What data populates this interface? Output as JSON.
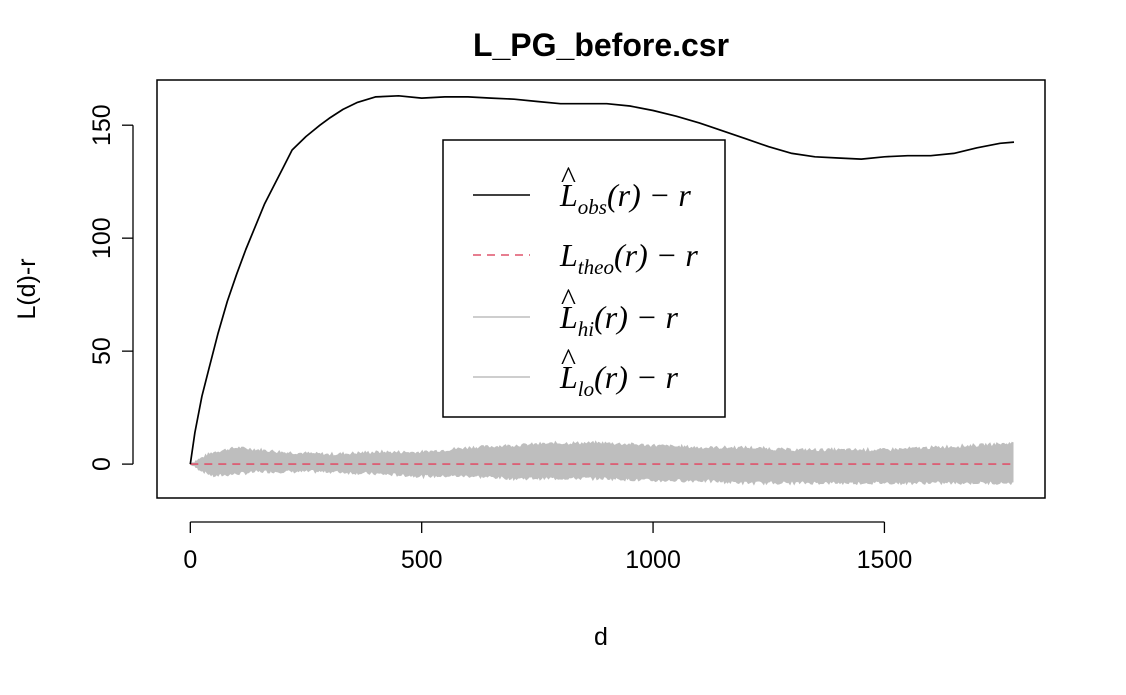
{
  "chart_data": {
    "type": "line",
    "title": "L_PG_before.csr",
    "xlabel": "d",
    "ylabel": "L(d)-r",
    "xlim": [
      -72,
      1847
    ],
    "ylim": [
      -15,
      170
    ],
    "x_ticks": [
      0,
      500,
      1000,
      1500
    ],
    "y_ticks": [
      0,
      50,
      100,
      150
    ],
    "x_tick_labels": [
      "0",
      "500",
      "1000",
      "1500"
    ],
    "y_tick_labels": [
      "0",
      "50",
      "100",
      "150"
    ],
    "grid": false,
    "legend_position": "top-center",
    "series": [
      {
        "name": "obs",
        "color": "#000000",
        "style": "solid",
        "x": [
          0,
          10,
          25,
          40,
          60,
          80,
          100,
          120,
          140,
          160,
          180,
          200,
          220,
          250,
          280,
          300,
          330,
          360,
          400,
          450,
          500,
          550,
          600,
          650,
          700,
          750,
          800,
          850,
          900,
          950,
          1000,
          1050,
          1100,
          1150,
          1200,
          1250,
          1300,
          1350,
          1400,
          1450,
          1500,
          1550,
          1600,
          1650,
          1700,
          1750,
          1780
        ],
        "y": [
          0,
          14,
          30,
          42,
          58,
          72,
          84,
          95,
          105,
          115,
          123,
          131,
          139,
          145,
          150,
          153,
          157,
          160,
          162.5,
          163,
          162,
          162.5,
          162.5,
          162,
          161.5,
          160.5,
          159.5,
          159.5,
          159.5,
          158.5,
          156.5,
          154,
          151,
          147.5,
          144,
          140.5,
          137.5,
          136,
          135.5,
          135,
          136,
          136.5,
          136.5,
          137.5,
          140,
          142,
          142.5
        ]
      },
      {
        "name": "theo",
        "color": "#DF536B",
        "style": "dashed",
        "x": [
          0,
          1780
        ],
        "y": [
          0,
          0
        ]
      },
      {
        "name": "hi",
        "color": "#BEBEBE",
        "style": "solid",
        "x": [
          0,
          50,
          100,
          150,
          200,
          300,
          400,
          500,
          600,
          700,
          800,
          900,
          1000,
          1100,
          1200,
          1300,
          1400,
          1500,
          1600,
          1700,
          1780
        ],
        "y": [
          0,
          5,
          7,
          6,
          5,
          4,
          5,
          5,
          7,
          8,
          9,
          9,
          8,
          7,
          7,
          6,
          6,
          6,
          7,
          8,
          9
        ]
      },
      {
        "name": "lo",
        "color": "#BEBEBE",
        "style": "solid",
        "x": [
          0,
          50,
          100,
          150,
          200,
          300,
          400,
          500,
          600,
          700,
          800,
          900,
          1000,
          1100,
          1200,
          1300,
          1400,
          1500,
          1600,
          1700,
          1780
        ],
        "y": [
          0,
          -5,
          -4,
          -3,
          -3,
          -3,
          -4,
          -5,
          -5,
          -6,
          -6,
          -6,
          -7,
          -7,
          -8,
          -8,
          -8,
          -8,
          -8,
          -8,
          -8
        ]
      }
    ],
    "legend": {
      "entries": [
        {
          "main": "L",
          "hat": true,
          "sub": "obs",
          "tail": "(r) − r",
          "color": "#000000",
          "style": "solid"
        },
        {
          "main": "L",
          "hat": false,
          "sub": "theo",
          "tail": "(r) − r",
          "color": "#DF536B",
          "style": "dashed"
        },
        {
          "main": "L",
          "hat": true,
          "sub": "hi",
          "tail": "(r) − r",
          "color": "#BEBEBE",
          "style": "solid"
        },
        {
          "main": "L",
          "hat": true,
          "sub": "lo",
          "tail": "(r) − r",
          "color": "#BEBEBE",
          "style": "solid"
        }
      ]
    }
  }
}
